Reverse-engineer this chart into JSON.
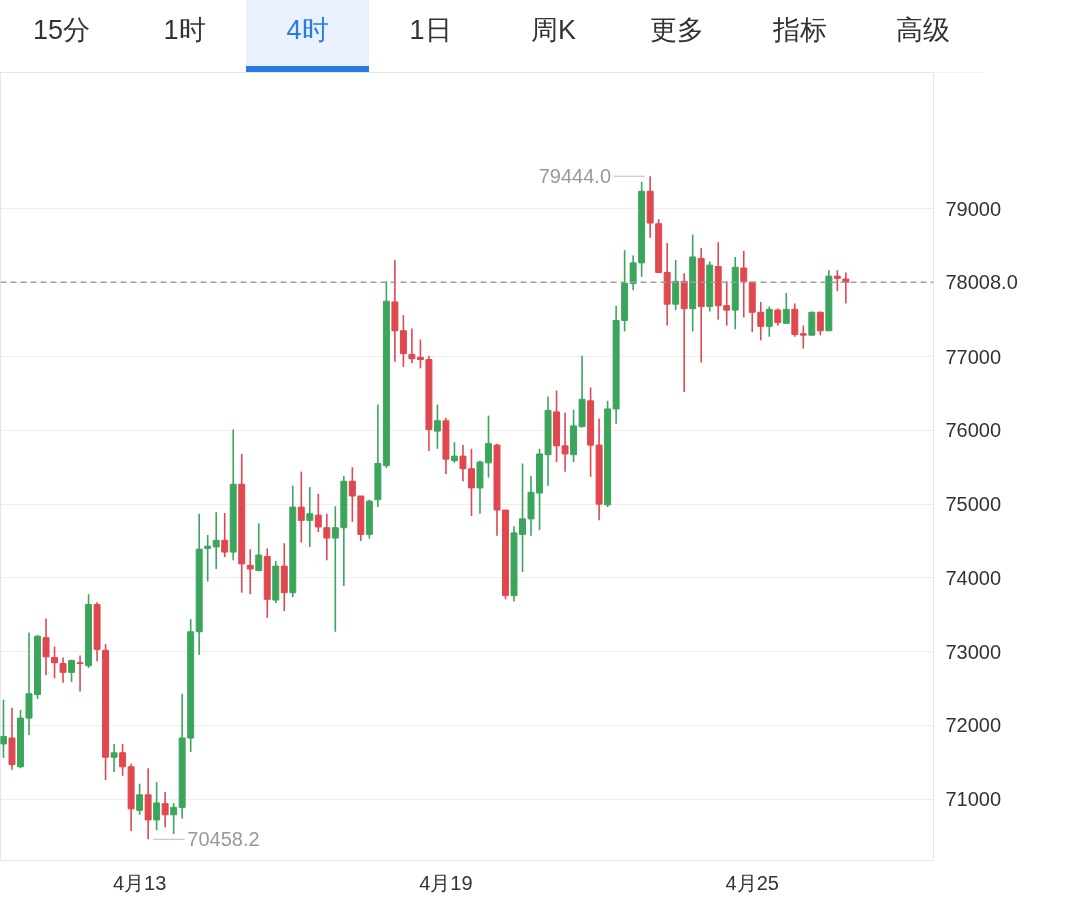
{
  "chart_data": {
    "type": "candlestick",
    "categories": [
      null,
      null,
      null,
      null,
      null,
      null,
      null,
      null,
      null,
      null,
      null,
      null,
      null,
      null,
      null,
      null,
      "4月13",
      null,
      null,
      null,
      null,
      null,
      null,
      null,
      null,
      null,
      null,
      null,
      null,
      null,
      null,
      null,
      null,
      null,
      null,
      null,
      null,
      null,
      null,
      null,
      null,
      null,
      null,
      null,
      null,
      null,
      null,
      null,
      null,
      null,
      null,
      null,
      "4月19",
      null,
      null,
      null,
      null,
      null,
      null,
      null,
      null,
      null,
      null,
      null,
      null,
      null,
      null,
      null,
      null,
      null,
      null,
      null,
      null,
      null,
      null,
      null,
      null,
      null,
      null,
      null,
      null,
      null,
      null,
      null,
      null,
      null,
      null,
      null,
      "4月25",
      null,
      null,
      null,
      null,
      null,
      null,
      null,
      null,
      null,
      null,
      null
    ],
    "ohlc": [
      [
        71750,
        72350,
        71560,
        71850
      ],
      [
        71830,
        72240,
        71400,
        71470
      ],
      [
        71440,
        72210,
        71420,
        72100
      ],
      [
        72100,
        73260,
        71870,
        72430
      ],
      [
        72420,
        73230,
        72360,
        73210
      ],
      [
        73190,
        73450,
        72680,
        72930
      ],
      [
        72920,
        73070,
        72640,
        72850
      ],
      [
        72840,
        72920,
        72580,
        72720
      ],
      [
        72720,
        72890,
        72590,
        72880
      ],
      [
        72850,
        72950,
        72460,
        72840
      ],
      [
        72810,
        73780,
        72780,
        73640
      ],
      [
        73640,
        73670,
        72870,
        73030
      ],
      [
        73020,
        73100,
        71260,
        71570
      ],
      [
        71570,
        71750,
        71370,
        71630
      ],
      [
        71630,
        71750,
        71320,
        71440
      ],
      [
        71440,
        71480,
        70570,
        70870
      ],
      [
        70850,
        71210,
        70790,
        71060
      ],
      [
        71060,
        71420,
        70458.2,
        70720
      ],
      [
        70720,
        71230,
        70580,
        70950
      ],
      [
        70940,
        71100,
        70620,
        70790
      ],
      [
        70790,
        70950,
        70530,
        70890
      ],
      [
        70890,
        72430,
        70740,
        71830
      ],
      [
        71830,
        73440,
        71640,
        73270
      ],
      [
        73270,
        74870,
        72960,
        74390
      ],
      [
        74400,
        74580,
        73950,
        74430
      ],
      [
        74420,
        74890,
        74120,
        74510
      ],
      [
        74510,
        74880,
        74280,
        74350
      ],
      [
        74350,
        76010,
        74240,
        75270
      ],
      [
        75270,
        75680,
        73800,
        74190
      ],
      [
        74170,
        74390,
        73780,
        74120
      ],
      [
        74100,
        74740,
        74090,
        74310
      ],
      [
        74290,
        74400,
        73460,
        73710
      ],
      [
        73700,
        74230,
        73660,
        74160
      ],
      [
        74160,
        74470,
        73550,
        73800
      ],
      [
        73800,
        75250,
        73740,
        74960
      ],
      [
        74960,
        75440,
        74480,
        74780
      ],
      [
        74780,
        75230,
        74420,
        74870
      ],
      [
        74850,
        75140,
        74620,
        74690
      ],
      [
        74680,
        74870,
        74240,
        74540
      ],
      [
        74540,
        74970,
        73270,
        74680
      ],
      [
        74680,
        75380,
        73890,
        75310
      ],
      [
        75310,
        75500,
        74760,
        75110
      ],
      [
        75110,
        75110,
        74500,
        74590
      ],
      [
        74590,
        75060,
        74530,
        75040
      ],
      [
        75060,
        76350,
        74960,
        75550
      ],
      [
        75520,
        78020,
        75490,
        77750
      ],
      [
        77740,
        78310,
        76930,
        77350
      ],
      [
        77350,
        77560,
        76860,
        77040
      ],
      [
        77030,
        77380,
        76910,
        76970
      ],
      [
        76990,
        77230,
        76840,
        76960
      ],
      [
        76960,
        77010,
        75720,
        76010
      ],
      [
        75990,
        76350,
        75750,
        76130
      ],
      [
        76130,
        76170,
        75410,
        75610
      ],
      [
        75590,
        75840,
        75560,
        75650
      ],
      [
        75650,
        75800,
        75310,
        75480
      ],
      [
        75480,
        75750,
        74840,
        75220
      ],
      [
        75220,
        75590,
        74870,
        75570
      ],
      [
        75560,
        76200,
        75360,
        75820
      ],
      [
        75800,
        75820,
        74570,
        74920
      ],
      [
        74920,
        74920,
        73710,
        73760
      ],
      [
        73760,
        74700,
        73680,
        74610
      ],
      [
        74590,
        75550,
        74080,
        74800
      ],
      [
        74800,
        75380,
        74570,
        75160
      ],
      [
        75150,
        75750,
        74650,
        75680
      ],
      [
        75670,
        76460,
        75250,
        76270
      ],
      [
        76250,
        76540,
        75570,
        75790
      ],
      [
        75790,
        76240,
        75440,
        75680
      ],
      [
        75670,
        76280,
        75570,
        76060
      ],
      [
        76050,
        77010,
        76040,
        76420
      ],
      [
        76400,
        76580,
        75370,
        75800
      ],
      [
        75800,
        76160,
        74780,
        75000
      ],
      [
        74990,
        76400,
        74960,
        76290
      ],
      [
        76290,
        77690,
        76090,
        77490
      ],
      [
        77490,
        78440,
        77340,
        77990
      ],
      [
        77990,
        78370,
        77900,
        78270
      ],
      [
        78270,
        79370,
        78080,
        79240
      ],
      [
        79240,
        79444.0,
        78610,
        78810
      ],
      [
        78800,
        78860,
        78130,
        78140
      ],
      [
        78140,
        78540,
        77420,
        77710
      ],
      [
        77710,
        78310,
        77630,
        78020
      ],
      [
        78020,
        78130,
        76520,
        77650
      ],
      [
        77650,
        78650,
        77340,
        78350
      ],
      [
        78330,
        78470,
        76920,
        77680
      ],
      [
        77680,
        78290,
        77610,
        78240
      ],
      [
        78220,
        78550,
        77500,
        77690
      ],
      [
        77690,
        78020,
        77420,
        77630
      ],
      [
        77630,
        78350,
        77370,
        78210
      ],
      [
        78200,
        78430,
        77530,
        78020
      ],
      [
        78010,
        78010,
        77330,
        77600
      ],
      [
        77600,
        77740,
        77220,
        77410
      ],
      [
        77410,
        77680,
        77270,
        77640
      ],
      [
        77630,
        77650,
        77420,
        77460
      ],
      [
        77450,
        77860,
        77450,
        77640
      ],
      [
        77640,
        77720,
        77270,
        77300
      ],
      [
        77310,
        77420,
        77110,
        77290
      ],
      [
        77290,
        77610,
        77290,
        77600
      ],
      [
        77600,
        77610,
        77290,
        77350
      ],
      [
        77350,
        78170,
        77350,
        78090
      ],
      [
        78090,
        78170,
        77890,
        78060
      ],
      [
        78050,
        78140,
        77720,
        78008.0
      ]
    ],
    "colors": [
      "#3ba55c",
      "#e0474f",
      "#3ba55c",
      "#3ba55c",
      "#3ba55c",
      "#e0474f",
      "#e0474f",
      "#e0474f",
      "#3ba55c",
      "#e0474f",
      "#3ba55c",
      "#e0474f",
      "#e0474f",
      "#3ba55c",
      "#e0474f",
      "#e0474f",
      "#3ba55c",
      "#e0474f",
      "#3ba55c",
      "#e0474f",
      "#3ba55c",
      "#3ba55c",
      "#3ba55c",
      "#3ba55c",
      "#3ba55c",
      "#3ba55c",
      "#e0474f",
      "#3ba55c",
      "#e0474f",
      "#e0474f",
      "#3ba55c",
      "#e0474f",
      "#3ba55c",
      "#e0474f",
      "#3ba55c",
      "#e0474f",
      "#3ba55c",
      "#e0474f",
      "#e0474f",
      "#3ba55c",
      "#3ba55c",
      "#e0474f",
      "#e0474f",
      "#3ba55c",
      "#3ba55c",
      "#3ba55c",
      "#e0474f",
      "#e0474f",
      "#e0474f",
      "#e0474f",
      "#e0474f",
      "#3ba55c",
      "#e0474f",
      "#3ba55c",
      "#e0474f",
      "#e0474f",
      "#3ba55c",
      "#3ba55c",
      "#e0474f",
      "#e0474f",
      "#3ba55c",
      "#3ba55c",
      "#3ba55c",
      "#3ba55c",
      "#3ba55c",
      "#e0474f",
      "#e0474f",
      "#3ba55c",
      "#3ba55c",
      "#e0474f",
      "#e0474f",
      "#3ba55c",
      "#3ba55c",
      "#3ba55c",
      "#3ba55c",
      "#3ba55c",
      "#e0474f",
      "#e0474f",
      "#e0474f",
      "#3ba55c",
      "#e0474f",
      "#3ba55c",
      "#e0474f",
      "#3ba55c",
      "#e0474f",
      "#e0474f",
      "#3ba55c",
      "#e0474f",
      "#e0474f",
      "#e0474f",
      "#3ba55c",
      "#e0474f",
      "#3ba55c",
      "#e0474f",
      "#e0474f",
      "#3ba55c",
      "#e0474f",
      "#3ba55c",
      "#e0474f",
      "#e0474f"
    ],
    "ylim": [
      70170,
      80850
    ],
    "yticks": [
      71000,
      72000,
      73000,
      74000,
      75000,
      76000,
      77000,
      79000
    ],
    "grid": "y",
    "ref_lines": [
      {
        "axis": "y",
        "value": 78008.0,
        "label": "78008.0",
        "line_style": "dashed"
      }
    ],
    "annotations": [
      "15分",
      "1时",
      "4时",
      "1日",
      "周K",
      "更多",
      "指标",
      "高级",
      "79444.0",
      "70458.2"
    ]
  }
}
